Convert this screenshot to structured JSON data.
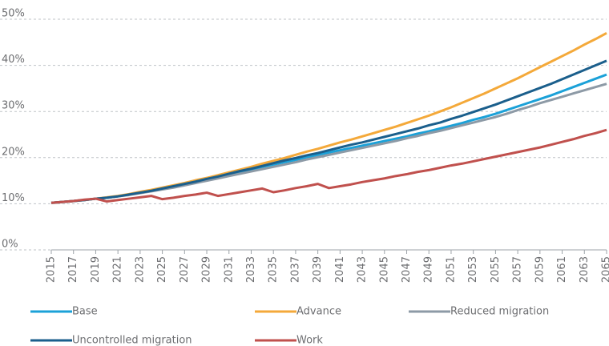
{
  "chart_data": {
    "type": "line",
    "x": [
      2015,
      2016,
      2017,
      2018,
      2019,
      2020,
      2021,
      2022,
      2023,
      2024,
      2025,
      2026,
      2027,
      2028,
      2029,
      2030,
      2031,
      2032,
      2033,
      2034,
      2035,
      2036,
      2037,
      2038,
      2039,
      2040,
      2041,
      2042,
      2043,
      2044,
      2045,
      2046,
      2047,
      2048,
      2049,
      2050,
      2051,
      2052,
      2053,
      2054,
      2055,
      2056,
      2057,
      2058,
      2059,
      2060,
      2061,
      2062,
      2063,
      2064,
      2065
    ],
    "xlim": [
      2015,
      2065
    ],
    "xticks": [
      2015,
      2017,
      2019,
      2021,
      2023,
      2025,
      2027,
      2029,
      2031,
      2033,
      2035,
      2037,
      2039,
      2041,
      2043,
      2045,
      2047,
      2049,
      2051,
      2053,
      2055,
      2057,
      2059,
      2061,
      2063,
      2065
    ],
    "ylim": [
      0,
      50
    ],
    "yticks": [
      {
        "value": 0,
        "label": "0%"
      },
      {
        "value": 10,
        "label": "10%"
      },
      {
        "value": 20,
        "label": "20%"
      },
      {
        "value": 30,
        "label": "30%"
      },
      {
        "value": 40,
        "label": "40%"
      },
      {
        "value": 50,
        "label": "50%"
      }
    ],
    "grid": true,
    "series": [
      {
        "name": "Base",
        "color": "#1ba1d8",
        "values": [
          10.2,
          10.4,
          10.6,
          10.8,
          11.1,
          11.3,
          11.6,
          12.0,
          12.4,
          12.8,
          13.2,
          13.7,
          14.2,
          14.7,
          15.3,
          15.8,
          16.3,
          16.9,
          17.4,
          18.0,
          18.5,
          19.0,
          19.5,
          20.1,
          20.6,
          21.1,
          21.6,
          22.1,
          22.6,
          23.1,
          23.6,
          24.1,
          24.6,
          25.2,
          25.7,
          26.3,
          26.9,
          27.5,
          28.2,
          28.8,
          29.5,
          30.3,
          31.1,
          31.9,
          32.7,
          33.5,
          34.4,
          35.3,
          36.2,
          37.1,
          38.0
        ]
      },
      {
        "name": "Advance",
        "color": "#f4a93a",
        "values": [
          10.2,
          10.4,
          10.6,
          10.8,
          11.1,
          11.4,
          11.7,
          12.1,
          12.6,
          13.0,
          13.5,
          14.0,
          14.5,
          15.1,
          15.6,
          16.2,
          16.8,
          17.4,
          18.0,
          18.7,
          19.3,
          19.9,
          20.6,
          21.3,
          21.9,
          22.6,
          23.3,
          23.9,
          24.6,
          25.3,
          26.0,
          26.7,
          27.5,
          28.3,
          29.1,
          30.0,
          30.9,
          31.9,
          32.9,
          33.9,
          35.0,
          36.1,
          37.2,
          38.4,
          39.6,
          40.8,
          42.0,
          43.2,
          44.5,
          45.7,
          47.0
        ]
      },
      {
        "name": "Reduced migration",
        "color": "#8d9aa6",
        "values": [
          10.2,
          10.4,
          10.6,
          10.8,
          11.1,
          11.3,
          11.6,
          11.9,
          12.3,
          12.7,
          13.1,
          13.5,
          14.0,
          14.5,
          15.0,
          15.5,
          16.0,
          16.5,
          17.0,
          17.5,
          18.0,
          18.5,
          19.0,
          19.6,
          20.1,
          20.6,
          21.1,
          21.6,
          22.1,
          22.6,
          23.1,
          23.6,
          24.2,
          24.7,
          25.3,
          25.8,
          26.4,
          27.0,
          27.6,
          28.2,
          28.8,
          29.5,
          30.3,
          31.0,
          31.8,
          32.5,
          33.2,
          33.9,
          34.6,
          35.3,
          36.0
        ]
      },
      {
        "name": "Uncontrolled migration",
        "color": "#1b5f8c",
        "values": [
          10.2,
          10.4,
          10.6,
          10.8,
          11.1,
          11.3,
          11.6,
          12.0,
          12.4,
          12.8,
          13.3,
          13.8,
          14.3,
          14.8,
          15.4,
          15.9,
          16.5,
          17.1,
          17.6,
          18.2,
          18.8,
          19.4,
          19.9,
          20.5,
          21.0,
          21.6,
          22.2,
          22.8,
          23.3,
          23.9,
          24.5,
          25.1,
          25.7,
          26.3,
          27.0,
          27.6,
          28.4,
          29.1,
          29.9,
          30.7,
          31.5,
          32.4,
          33.3,
          34.2,
          35.1,
          36.0,
          37.0,
          38.0,
          39.0,
          40.0,
          41.0
        ]
      },
      {
        "name": "Work",
        "color": "#c0504d",
        "values": [
          10.2,
          10.4,
          10.6,
          10.9,
          11.1,
          10.5,
          10.8,
          11.1,
          11.4,
          11.7,
          11.0,
          11.3,
          11.7,
          12.0,
          12.4,
          11.7,
          12.1,
          12.5,
          12.9,
          13.3,
          12.5,
          12.9,
          13.4,
          13.8,
          14.3,
          13.4,
          13.8,
          14.2,
          14.7,
          15.1,
          15.5,
          16.0,
          16.4,
          16.9,
          17.3,
          17.8,
          18.3,
          18.7,
          19.2,
          19.7,
          20.2,
          20.7,
          21.2,
          21.7,
          22.2,
          22.8,
          23.4,
          24.0,
          24.7,
          25.3,
          26.0
        ]
      }
    ]
  }
}
